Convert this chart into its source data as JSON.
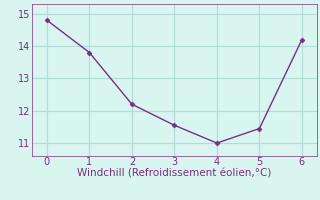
{
  "x": [
    0,
    1,
    2,
    3,
    4,
    5,
    6
  ],
  "y": [
    14.8,
    13.8,
    12.2,
    11.55,
    11.0,
    11.45,
    14.2
  ],
  "line_color": "#7B2D8B",
  "marker": "D",
  "marker_size": 2.5,
  "line_width": 1.0,
  "xlabel": "Windchill (Refroidissement éolien,°C)",
  "xlabel_color": "#7B2D8B",
  "xlabel_fontsize": 7.5,
  "background_color": "#d8f5f0",
  "grid_color": "#b0ddd8",
  "ylim": [
    10.6,
    15.3
  ],
  "xlim": [
    -0.35,
    6.35
  ],
  "yticks": [
    11,
    12,
    13,
    14,
    15
  ],
  "xticks": [
    0,
    1,
    2,
    3,
    4,
    5,
    6
  ],
  "tick_fontsize": 7,
  "tick_color": "#7B2D8B"
}
